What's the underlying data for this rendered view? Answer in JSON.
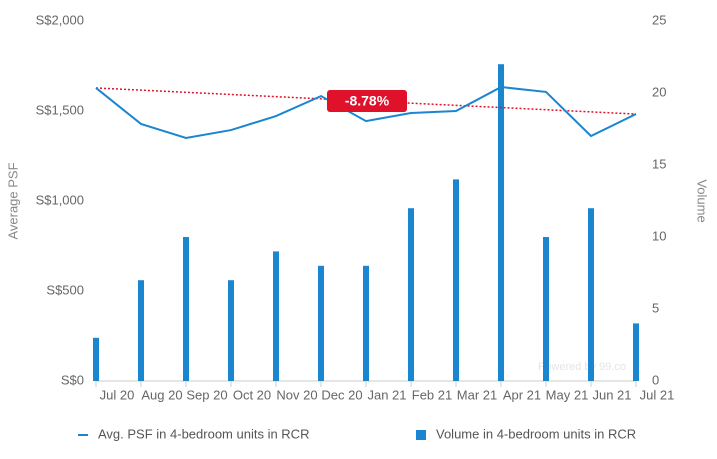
{
  "chart_data": {
    "type": "combo",
    "categories": [
      "Jul 20",
      "Aug 20",
      "Sep 20",
      "Oct 20",
      "Nov 20",
      "Dec 20",
      "Jan 21",
      "Feb 21",
      "Mar 21",
      "Apr 21",
      "May 21",
      "Jun 21",
      "Jul 21"
    ],
    "series": [
      {
        "name": "Avg. PSF in 4-bedroom units in RCR",
        "type": "line",
        "color": "#1a86d0",
        "values": [
          1628,
          1428,
          1350,
          1394,
          1472,
          1583,
          1444,
          1489,
          1500,
          1633,
          1606,
          1361,
          1483
        ]
      },
      {
        "name": "Volume in 4-bedroom units in RCR",
        "type": "bar",
        "axis": "y2",
        "color": "#1a86d0",
        "values": [
          3,
          7,
          10,
          7,
          9,
          8,
          8,
          12,
          14,
          22,
          10,
          12,
          4
        ]
      }
    ],
    "trend_line": {
      "color": "#e0112b",
      "start": 1628,
      "end": 1483,
      "label": "-8.78%"
    },
    "y_label": "Average PSF",
    "y2_label": "Volume",
    "ylim": [
      0,
      2000
    ],
    "yticks": [
      {
        "value": 0,
        "label": "S$0"
      },
      {
        "value": 500,
        "label": "S$500"
      },
      {
        "value": 1000,
        "label": "S$1,000"
      },
      {
        "value": 1500,
        "label": "S$1,500"
      },
      {
        "value": 2000,
        "label": "S$2,000"
      }
    ],
    "y2lim": [
      0,
      25
    ],
    "y2ticks": [
      0,
      5,
      10,
      15,
      20,
      25
    ],
    "watermark": "Powered by 99.co",
    "legend": "bottom"
  }
}
